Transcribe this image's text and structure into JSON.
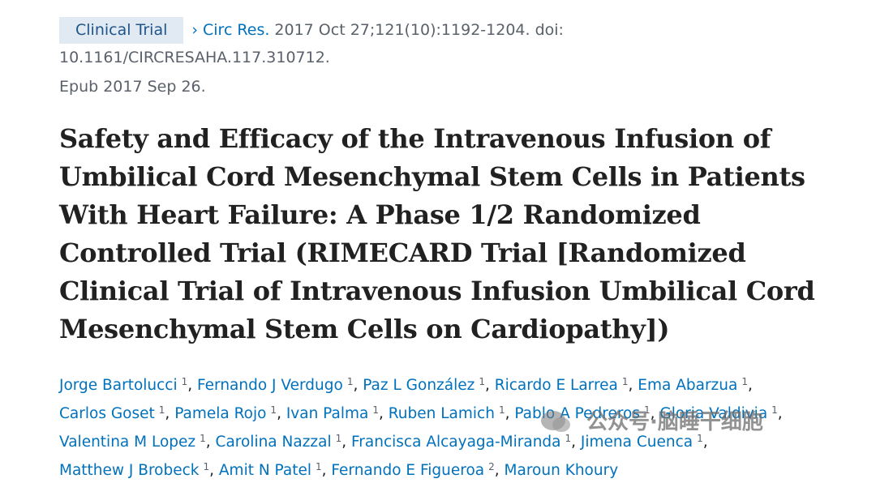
{
  "citation": {
    "article_type": "Clinical Trial",
    "chevron": "›",
    "journal": "Circ Res.",
    "details": "2017 Oct 27;121(10):1192-1204. doi: 10.1161/CIRCRESAHA.117.310712.",
    "epub": "Epub 2017 Sep 26."
  },
  "title": "Safety and Efficacy of the Intravenous Infusion of Umbilical Cord Mesenchymal Stem Cells in Patients With Heart Failure: A Phase 1/2 Randomized Controlled Trial (RIMECARD Trial [Randomized Clinical Trial of Intravenous Infusion Umbilical Cord Mesenchymal Stem Cells on Cardiopathy])",
  "authors": [
    {
      "name": "Jorge Bartolucci",
      "aff": "1"
    },
    {
      "name": "Fernando J Verdugo",
      "aff": "1"
    },
    {
      "name": "Paz L González",
      "aff": "1"
    },
    {
      "name": "Ricardo E Larrea",
      "aff": "1"
    },
    {
      "name": "Ema Abarzua",
      "aff": "1"
    },
    {
      "name": "Carlos Goset",
      "aff": "1"
    },
    {
      "name": "Pamela Rojo",
      "aff": "1"
    },
    {
      "name": "Ivan Palma",
      "aff": "1"
    },
    {
      "name": "Ruben Lamich",
      "aff": "1"
    },
    {
      "name": "Pablo A Pedreros",
      "aff": "1"
    },
    {
      "name": "Gloria Valdivia",
      "aff": "1"
    },
    {
      "name": "Valentina M Lopez",
      "aff": "1"
    },
    {
      "name": "Carolina Nazzal",
      "aff": "1"
    },
    {
      "name": "Francisca Alcayaga-Miranda",
      "aff": "1"
    },
    {
      "name": "Jimena Cuenca",
      "aff": "1"
    },
    {
      "name": "Matthew J Brobeck",
      "aff": "1"
    },
    {
      "name": "Amit N Patel",
      "aff": "1"
    },
    {
      "name": "Fernando E Figueroa",
      "aff": "2"
    },
    {
      "name": "Maroun Khoury",
      "aff": ""
    }
  ],
  "watermark": {
    "text": "公众号·脑睡干细胞"
  },
  "colors": {
    "link": "#0071bc",
    "badge_bg": "#e1eaf3",
    "title": "#212121"
  }
}
